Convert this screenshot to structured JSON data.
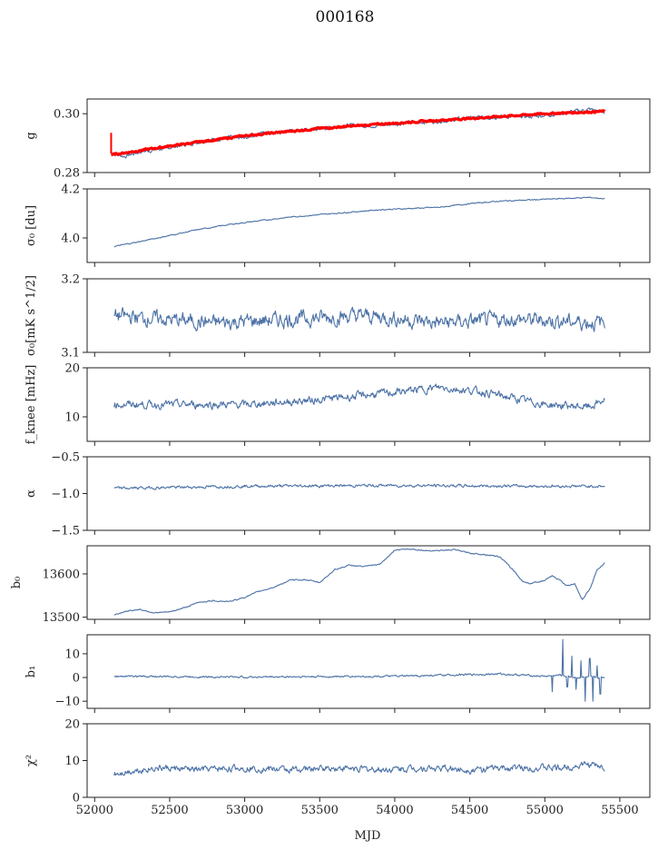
{
  "title": "000168",
  "chart_data": {
    "type": "line",
    "title": "000168",
    "xlabel": "MJD",
    "xlim": [
      51950,
      55700
    ],
    "xticks": [
      52000,
      52500,
      53000,
      53500,
      54000,
      54500,
      55000,
      55500
    ],
    "series_color": "#4c72a6",
    "fit_color": "#ff0000",
    "panels": [
      {
        "id": "g",
        "ylabel": "g",
        "ylim": [
          0.28,
          0.305
        ],
        "yticks": [
          "0.28",
          "0.30"
        ],
        "ytick_values": [
          0.28,
          0.3
        ],
        "series": [
          {
            "x": [
              52110,
              52200,
              52300,
              52500,
              52700,
              52900,
              53000,
              53100,
              53300,
              53500,
              53700,
              53900,
              54100,
              54300,
              54500,
              54700,
              54900,
              55100,
              55300,
              55400
            ],
            "y": [
              0.2865,
              0.2855,
              0.287,
              0.2885,
              0.2905,
              0.292,
              0.2915,
              0.2935,
              0.294,
              0.295,
              0.296,
              0.296,
              0.297,
              0.2975,
              0.2985,
              0.299,
              0.299,
              0.3,
              0.3015,
              0.3005
            ],
            "noise": 0.0012
          },
          {
            "x": [
              52110,
              52500,
              53000,
              53500,
              54000,
              54500,
              55000,
              55400
            ],
            "y": [
              0.286,
              0.289,
              0.2925,
              0.295,
              0.2968,
              0.2984,
              0.3,
              0.3008
            ],
            "noise": 0.0005,
            "fit": true
          }
        ]
      },
      {
        "id": "sigma0-du",
        "ylabel": "σ₀ [du]",
        "ylim": [
          3.9,
          4.2
        ],
        "yticks": [
          "4.0",
          "4.2"
        ],
        "ytick_values": [
          4.0,
          4.2
        ],
        "series": [
          {
            "x": [
              52130,
              52300,
              52500,
              52700,
              52900,
              53100,
              53300,
              53500,
              53700,
              53900,
              54100,
              54300,
              54500,
              54700,
              54900,
              55100,
              55300,
              55400
            ],
            "y": [
              3.965,
              3.985,
              4.01,
              4.035,
              4.055,
              4.07,
              4.085,
              4.095,
              4.105,
              4.115,
              4.12,
              4.125,
              4.14,
              4.15,
              4.155,
              4.16,
              4.165,
              4.16
            ],
            "noise": 0.004
          }
        ]
      },
      {
        "id": "sigma0-mks",
        "ylabel": "σ₀[mK s^1/2]",
        "ylim": [
          3.1,
          3.2
        ],
        "yticks": [
          "3.1",
          "3.2"
        ],
        "ytick_values": [
          3.1,
          3.2
        ],
        "series": [
          {
            "x": [
              52130,
              52800,
              53300,
              53800,
              54300,
              54800,
              55400
            ],
            "y": [
              3.15,
              3.14,
              3.145,
              3.15,
              3.14,
              3.145,
              3.14
            ],
            "noise": 0.018
          }
        ]
      },
      {
        "id": "fknee",
        "ylabel": "f_knee [mHz]",
        "ylim": [
          5,
          20
        ],
        "yticks": [
          "10",
          "20"
        ],
        "ytick_values": [
          10,
          20
        ],
        "series": [
          {
            "x": [
              52130,
              52500,
              53000,
              53500,
              54000,
              54300,
              54600,
              55000,
              55300,
              55400
            ],
            "y": [
              12.5,
              12.5,
              12.5,
              13.5,
              15,
              16,
              15,
              12.5,
              12,
              13.5
            ],
            "noise": 1.4
          }
        ]
      },
      {
        "id": "alpha",
        "ylabel": "α",
        "ylim": [
          -1.5,
          -0.5
        ],
        "yticks": [
          "−1.5",
          "−1.0",
          "−0.5"
        ],
        "ytick_values": [
          -1.5,
          -1.0,
          -0.5
        ],
        "series": [
          {
            "x": [
              52130,
              53000,
              54000,
              55000,
              55400
            ],
            "y": [
              -0.93,
              -0.9,
              -0.89,
              -0.9,
              -0.9
            ],
            "noise": 0.035
          }
        ]
      },
      {
        "id": "b0",
        "ylabel": "b₀",
        "ylim": [
          13495,
          13665
        ],
        "yticks": [
          "13500",
          "13600"
        ],
        "ytick_values": [
          13500,
          13600
        ],
        "series": [
          {
            "x": [
              52130,
              52200,
              52300,
              52400,
              52500,
              52600,
              52700,
              52800,
              52900,
              53000,
              53100,
              53200,
              53300,
              53400,
              53500,
              53600,
              53700,
              53800,
              53900,
              54000,
              54100,
              54200,
              54300,
              54400,
              54500,
              54600,
              54700,
              54800,
              54850,
              54900,
              55000,
              55050,
              55100,
              55150,
              55200,
              55250,
              55300,
              55350,
              55400
            ],
            "y": [
              13505,
              13513,
              13518,
              13510,
              13512,
              13522,
              13535,
              13538,
              13536,
              13546,
              13560,
              13570,
              13585,
              13587,
              13580,
              13610,
              13620,
              13617,
              13622,
              13655,
              13658,
              13654,
              13654,
              13656,
              13648,
              13645,
              13640,
              13605,
              13583,
              13578,
              13585,
              13595,
              13586,
              13572,
              13578,
              13540,
              13565,
              13610,
              13625
            ],
            "noise": 2.5
          }
        ]
      },
      {
        "id": "b1",
        "ylabel": "b₁",
        "ylim": [
          -13,
          18
        ],
        "yticks": [
          "−10",
          "0",
          "10"
        ],
        "ytick_values": [
          -10,
          0,
          10
        ],
        "series": [
          {
            "x": [
              52130,
              53000,
              54000,
              54700,
              55000,
              55100,
              55200,
              55300,
              55400
            ],
            "y": [
              0.5,
              0.2,
              0.5,
              1.5,
              0.5,
              1,
              0,
              0,
              0
            ],
            "noise": 0.7,
            "spikes": [
              [
                55050,
                -6
              ],
              [
                55120,
                16
              ],
              [
                55150,
                -4
              ],
              [
                55180,
                9
              ],
              [
                55210,
                -5
              ],
              [
                55240,
                7
              ],
              [
                55270,
                -10
              ],
              [
                55300,
                8
              ],
              [
                55320,
                -10
              ],
              [
                55350,
                5
              ],
              [
                55370,
                -7
              ]
            ]
          }
        ]
      },
      {
        "id": "chi2",
        "ylabel": "χ²",
        "ylim": [
          0,
          20
        ],
        "yticks": [
          "0",
          "10",
          "20"
        ],
        "ytick_values": [
          0,
          10,
          20
        ],
        "series": [
          {
            "x": [
              52130,
              52400,
              52700,
              53000,
              53300,
              53600,
              53900,
              54200,
              54500,
              54800,
              55100,
              55300,
              55400
            ],
            "y": [
              6.5,
              8,
              7.5,
              8,
              7.5,
              8,
              7.5,
              8,
              7.5,
              8,
              8,
              9,
              8
            ],
            "noise": 1.6
          }
        ]
      }
    ]
  }
}
